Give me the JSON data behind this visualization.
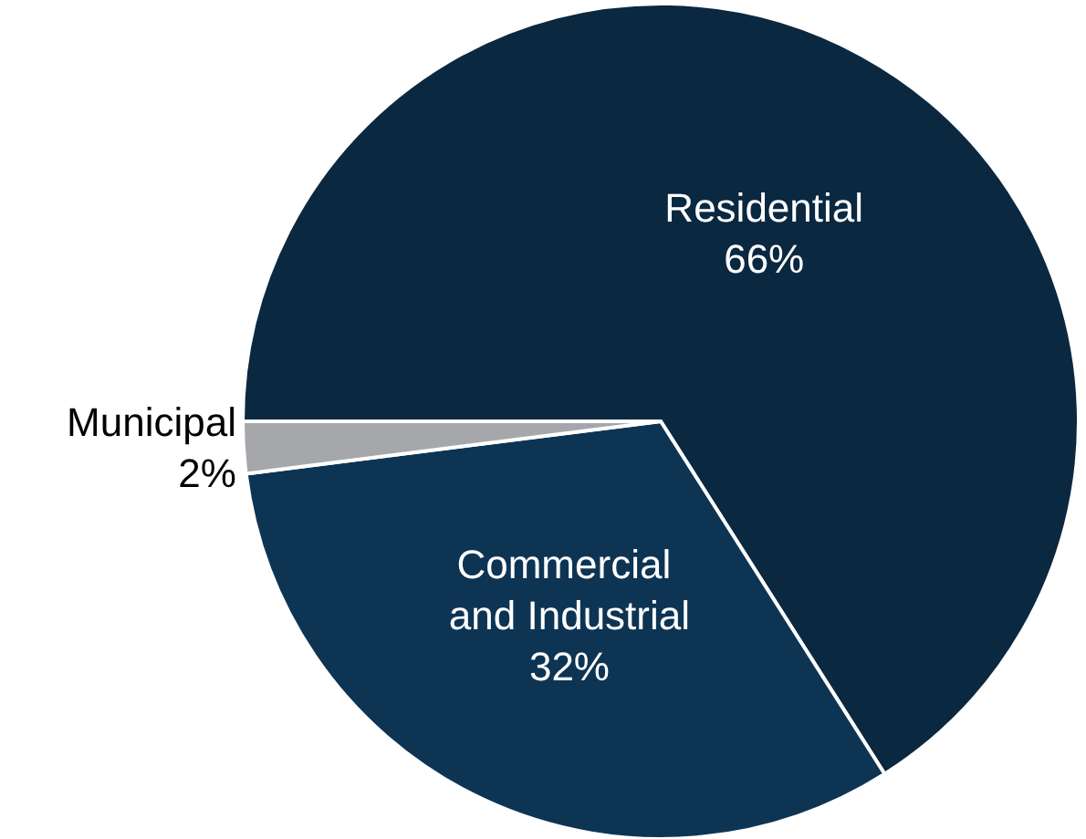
{
  "chart_data": {
    "type": "pie",
    "categories": [
      "Residential",
      "Commercial and Industrial",
      "Municipal"
    ],
    "values": [
      66,
      32,
      2
    ],
    "colors": [
      "#0b2841",
      "#0e3454",
      "#a5a7aa"
    ],
    "value_labels": [
      "66%",
      "32%",
      "2%"
    ],
    "legend": false
  }
}
